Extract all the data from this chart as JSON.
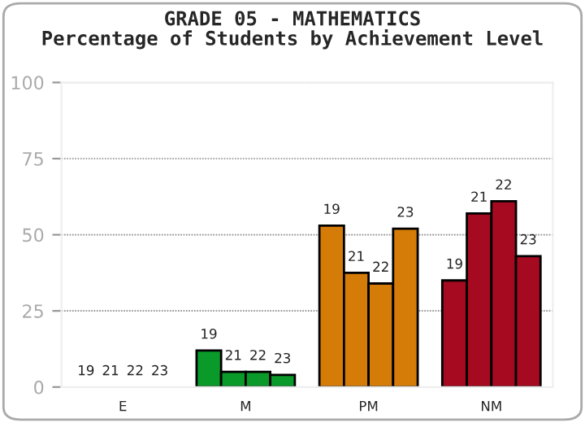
{
  "chart_data": {
    "type": "bar",
    "title": "GRADE 05 - MATHEMATICS\nPercentage of Students by Achievement Level",
    "categories": [
      "E",
      "M",
      "PM",
      "NM"
    ],
    "series": [
      {
        "name": "19",
        "colors": [
          "#0a9a2a",
          "#0a9a2a",
          "#d57c08",
          "#a50a20"
        ],
        "values": [
          0,
          12,
          53,
          35
        ]
      },
      {
        "name": "21",
        "colors": [
          "#0a9a2a",
          "#0a9a2a",
          "#d57c08",
          "#a50a20"
        ],
        "values": [
          0,
          5,
          37.5,
          57
        ]
      },
      {
        "name": "22",
        "colors": [
          "#0a9a2a",
          "#0a9a2a",
          "#d57c08",
          "#a50a20"
        ],
        "values": [
          0,
          5,
          34,
          61
        ]
      },
      {
        "name": "23",
        "colors": [
          "#0a9a2a",
          "#0a9a2a",
          "#d57c08",
          "#a50a20"
        ],
        "values": [
          0,
          4,
          52,
          43
        ]
      }
    ],
    "ylim": [
      0,
      100
    ],
    "yticks": [
      0,
      25,
      50,
      75,
      100
    ],
    "grid": "y",
    "legend": false
  }
}
